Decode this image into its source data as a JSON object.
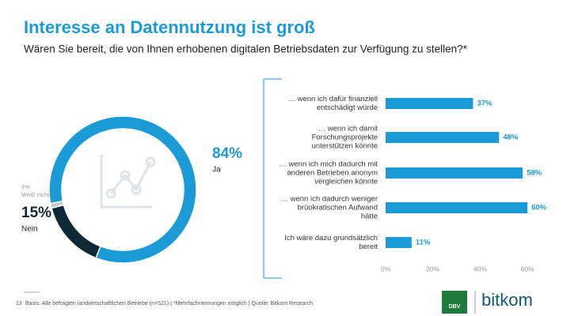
{
  "header": {
    "title": "Interesse an Datennutzung ist groß",
    "subtitle": "Wären Sie bereit, die von Ihnen erhobenen digitalen Betriebsdaten zur Verfügung zu stellen?*"
  },
  "chart_data": [
    {
      "type": "pie",
      "categories": [
        "Ja",
        "Nein",
        "Weiß nicht"
      ],
      "values": [
        84,
        15,
        1
      ],
      "value_labels": [
        "84%",
        "15%",
        "1%"
      ],
      "colors": [
        "#1a9ad6",
        "#0f2a35",
        "#c8c8c8"
      ]
    },
    {
      "type": "bar",
      "orientation": "horizontal",
      "categories": [
        "… wenn ich dafür finanziell\nentschädigt würde",
        "… wenn ich damit\nForschungsprojekte\nunterstützen könnte",
        "… wenn ich mich dadurch mit\nanderen Betrieben anonym\nvergleichen könnte",
        "… wenn ich dadurch weniger\nbrüokratischen Aufwand\nhätte",
        "Ich wäre dazu grundsätzlich\nbereit"
      ],
      "values": [
        37,
        48,
        58,
        60,
        11
      ],
      "value_labels": [
        "37%",
        "48%",
        "58%",
        "60%",
        "11%"
      ],
      "color": "#1a9ad6",
      "xlim": [
        0,
        65
      ],
      "xticks": [
        {
          "value": 0,
          "label": "0%"
        },
        {
          "value": 20,
          "label": "20%"
        },
        {
          "value": 40,
          "label": "40%"
        },
        {
          "value": 60,
          "label": "60%"
        }
      ]
    }
  ],
  "footer": {
    "page_number": "13",
    "note": "Basis: Alle befragten landwirtschaftlichen Betriebe (n=521) | *Mehrfachnennungen möglich | Quelle: Bitkom Research",
    "logo_left": "DBV",
    "logo_right": "bitkom"
  }
}
